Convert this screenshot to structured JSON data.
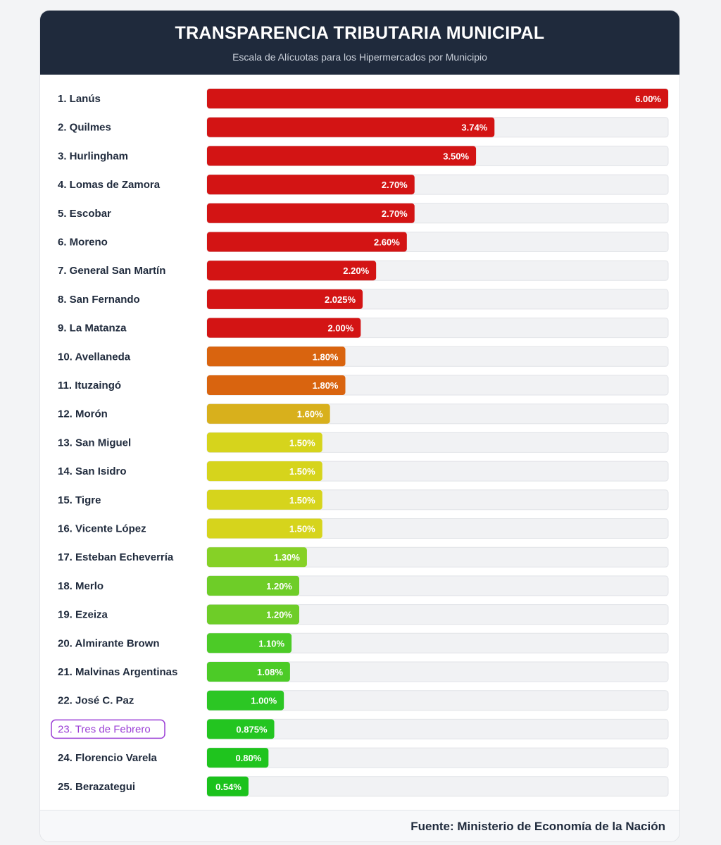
{
  "header": {
    "title": "TRANSPARENCIA TRIBUTARIA MUNICIPAL",
    "subtitle": "Escala de Alícuotas para los Hipermercados por Municipio"
  },
  "footer": {
    "source": "Fuente: Ministerio de Economía de la Nación"
  },
  "chart_data": {
    "type": "bar",
    "orientation": "horizontal",
    "title": "TRANSPARENCIA TRIBUTARIA MUNICIPAL",
    "subtitle": "Escala de Alícuotas para los Hipermercados por Municipio",
    "xlim": [
      0,
      6
    ],
    "unit": "%",
    "highlighted": "23. Tres de Febrero",
    "highlight_color": "#9b3fd6",
    "categories": [
      "1. Lanús",
      "2. Quilmes",
      "3. Hurlingham",
      "4. Lomas de Zamora",
      "5. Escobar",
      "6. Moreno",
      "7. General San Martín",
      "8. San Fernando",
      "9. La Matanza",
      "10. Avellaneda",
      "11. Ituzaingó",
      "12. Morón",
      "13. San Miguel",
      "14. San Isidro",
      "15. Tigre",
      "16. Vicente López",
      "17. Esteban Echeverría",
      "18. Merlo",
      "19. Ezeiza",
      "20. Almirante Brown",
      "21. Malvinas Argentinas",
      "22. José C. Paz",
      "23. Tres de Febrero",
      "24. Florencio Varela",
      "25. Berazategui"
    ],
    "values": [
      6.0,
      3.74,
      3.5,
      2.7,
      2.7,
      2.6,
      2.2,
      2.025,
      2.0,
      1.8,
      1.8,
      1.6,
      1.5,
      1.5,
      1.5,
      1.5,
      1.3,
      1.2,
      1.2,
      1.1,
      1.08,
      1.0,
      0.875,
      0.8,
      0.54
    ],
    "value_labels": [
      "6.00%",
      "3.74%",
      "3.50%",
      "2.70%",
      "2.70%",
      "2.60%",
      "2.20%",
      "2.025%",
      "2.00%",
      "1.80%",
      "1.80%",
      "1.60%",
      "1.50%",
      "1.50%",
      "1.50%",
      "1.50%",
      "1.30%",
      "1.20%",
      "1.20%",
      "1.10%",
      "1.08%",
      "1.00%",
      "0.875%",
      "0.80%",
      "0.54%"
    ],
    "colors": [
      "#d31414",
      "#d31414",
      "#d31414",
      "#d31414",
      "#d31414",
      "#d31414",
      "#d31414",
      "#d31414",
      "#d31414",
      "#d9640f",
      "#d9640f",
      "#d8b01c",
      "#d6d41c",
      "#d6d41c",
      "#d6d41c",
      "#d6d41c",
      "#86d126",
      "#6ecd28",
      "#6ecd28",
      "#4ccb27",
      "#4ccb27",
      "#2cc624",
      "#23c520",
      "#1fc41e",
      "#1bc21c"
    ],
    "track_color": "#f1f2f4"
  }
}
